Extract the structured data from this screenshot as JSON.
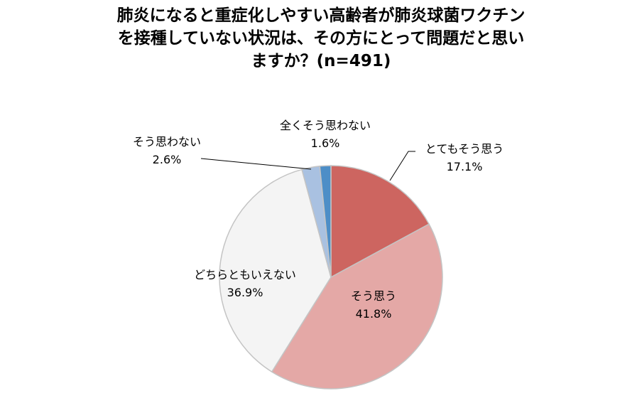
{
  "chart_data": {
    "type": "pie",
    "title_lines": [
      "肺炎になると重症化しやすい高齢者が肺炎球菌ワクチン",
      "を接種していない状況は、その方にとって問題だと思い",
      "ますか？(n=491)"
    ],
    "slices": [
      {
        "name": "とてもそう思う",
        "pct_label": "17.1%",
        "value": 17.1,
        "color": "#cd6560"
      },
      {
        "name": "そう思う",
        "pct_label": "41.8%",
        "value": 41.8,
        "color": "#e4a8a6"
      },
      {
        "name": "どちらともいえない",
        "pct_label": "36.9%",
        "value": 36.9,
        "color": "#f4f4f4"
      },
      {
        "name": "そう思わない",
        "pct_label": "2.6%",
        "value": 2.6,
        "color": "#a9c1e1"
      },
      {
        "name": "全くそう思わない",
        "pct_label": "1.6%",
        "value": 1.6,
        "color": "#4d8ec7"
      }
    ]
  }
}
